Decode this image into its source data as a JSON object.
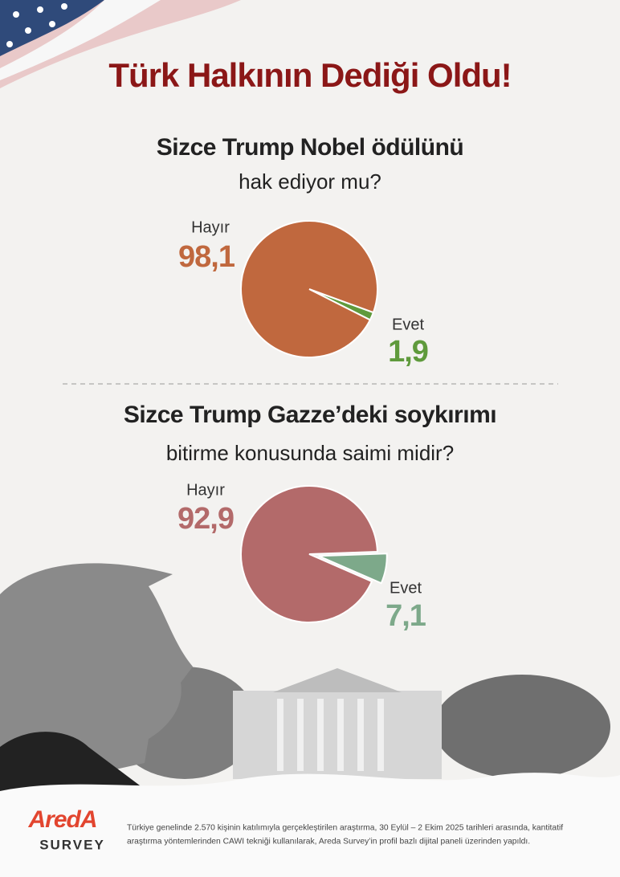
{
  "title": "Türk Halkının Dediği Oldu!",
  "chart_data": [
    {
      "type": "pie",
      "title": "Sizce Trump Nobel ödülünü",
      "subtitle": "hak ediyor mu?",
      "categories": [
        "Hayır",
        "Evet"
      ],
      "values": [
        98.1,
        1.9
      ],
      "value_labels": [
        "98,1",
        "1,9"
      ],
      "colors": [
        "#c0683e",
        "#5f9a3c"
      ]
    },
    {
      "type": "pie",
      "title": "Sizce Trump Gazze’deki soykırımı",
      "subtitle": "bitirme konusunda saimi midir?",
      "categories": [
        "Hayır",
        "Evet"
      ],
      "values": [
        92.9,
        7.1
      ],
      "value_labels": [
        "92,9",
        "7,1"
      ],
      "colors": [
        "#b36a6a",
        "#7da98a"
      ]
    }
  ],
  "logo": {
    "name": "AredA",
    "tagline": "SURVEY"
  },
  "footer": [
    "Türkiye genelinde 2.570 kişinin katılımıyla gerçekleştirilen araştırma, 30 Eylül – 2 Ekim 2025 tarihleri arasında, kantitatif",
    "araştırma yöntemlerinden CAWI tekniği kullanılarak, Areda Survey’in profil bazlı dijital paneli üzerinden yapıldı."
  ]
}
